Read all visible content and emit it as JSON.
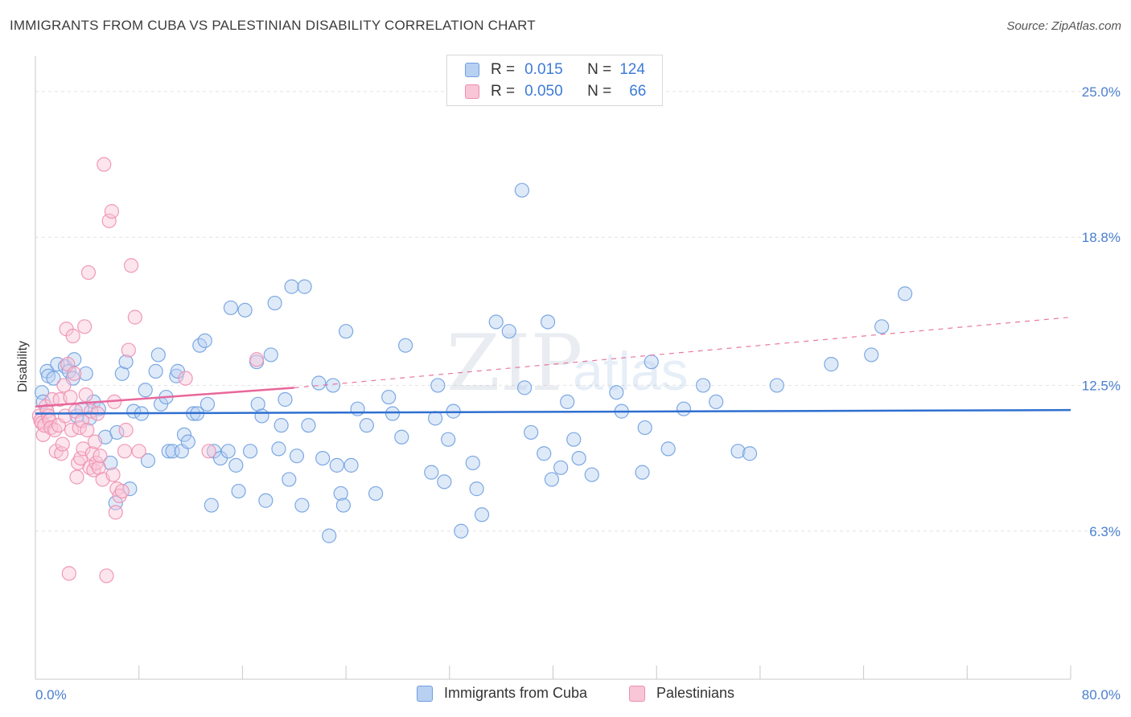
{
  "header": {
    "title": "IMMIGRANTS FROM CUBA VS PALESTINIAN DISABILITY CORRELATION CHART",
    "source": "Source: ZipAtlas.com"
  },
  "watermark": {
    "zip": "ZIP",
    "atlas": "atlas"
  },
  "legend": {
    "rows": [
      {
        "r_label": "R =",
        "r_value": "0.015",
        "n_label": "N =",
        "n_value": "124",
        "color": "#6fa0e0",
        "fill": "#b8d0f2"
      },
      {
        "r_label": "R =",
        "r_value": "0.050",
        "n_label": "N =",
        "n_value": "66",
        "color": "#ee8fb0",
        "fill": "#f8c6d6"
      }
    ]
  },
  "bottom_legend": [
    {
      "label": "Immigrants from Cuba",
      "color": "#6fa0e0",
      "fill": "#b8d0f2"
    },
    {
      "label": "Palestinians",
      "color": "#ee8fb0",
      "fill": "#f8c6d6"
    }
  ],
  "chart_data": {
    "type": "scatter",
    "title": "IMMIGRANTS FROM CUBA VS PALESTINIAN DISABILITY CORRELATION CHART",
    "xlabel": "",
    "ylabel": "Disability",
    "xlim": [
      0,
      80
    ],
    "ylim": [
      0,
      26.5
    ],
    "x_tick_labels": [
      {
        "value": 0,
        "label": "0.0%"
      },
      {
        "value": 80,
        "label": "80.0%"
      }
    ],
    "x_minor_ticks": [
      8,
      16,
      24,
      32,
      40,
      48,
      56,
      64,
      72,
      80
    ],
    "y_ticks": [
      {
        "value": 6.3,
        "label": "6.3%"
      },
      {
        "value": 12.5,
        "label": "12.5%"
      },
      {
        "value": 18.8,
        "label": "18.8%"
      },
      {
        "value": 25.0,
        "label": "25.0%"
      }
    ],
    "grid": "dashed-horizontal",
    "series": [
      {
        "name": "Immigrants from Cuba",
        "color": "#6fa0e0",
        "fill": "#b8d0f2",
        "trend": {
          "x0": 0,
          "y0": 11.3,
          "x1": 80,
          "y1": 11.45,
          "style": "solid"
        },
        "points": [
          [
            0.5,
            12.2
          ],
          [
            0.6,
            11.8
          ],
          [
            0.9,
            13.1
          ],
          [
            1.0,
            12.9
          ],
          [
            1.4,
            12.8
          ],
          [
            1.7,
            13.4
          ],
          [
            2.3,
            13.3
          ],
          [
            2.6,
            13.1
          ],
          [
            2.9,
            12.8
          ],
          [
            3.0,
            13.6
          ],
          [
            3.2,
            11.2
          ],
          [
            3.6,
            11.5
          ],
          [
            3.9,
            13.0
          ],
          [
            4.2,
            11.1
          ],
          [
            4.5,
            11.8
          ],
          [
            4.9,
            11.5
          ],
          [
            5.4,
            10.3
          ],
          [
            5.8,
            9.2
          ],
          [
            6.2,
            7.5
          ],
          [
            6.3,
            10.5
          ],
          [
            6.7,
            13.0
          ],
          [
            7.0,
            13.5
          ],
          [
            7.3,
            8.1
          ],
          [
            7.6,
            11.4
          ],
          [
            8.2,
            11.3
          ],
          [
            8.5,
            12.3
          ],
          [
            8.7,
            9.3
          ],
          [
            9.3,
            13.1
          ],
          [
            9.5,
            13.8
          ],
          [
            9.7,
            11.7
          ],
          [
            10.1,
            12.0
          ],
          [
            10.3,
            9.7
          ],
          [
            10.6,
            9.7
          ],
          [
            10.9,
            12.9
          ],
          [
            11.0,
            13.1
          ],
          [
            11.3,
            9.7
          ],
          [
            11.5,
            10.4
          ],
          [
            11.8,
            10.1
          ],
          [
            12.2,
            11.3
          ],
          [
            12.5,
            11.3
          ],
          [
            12.7,
            14.2
          ],
          [
            13.1,
            14.4
          ],
          [
            13.3,
            11.7
          ],
          [
            13.6,
            7.4
          ],
          [
            13.8,
            9.7
          ],
          [
            14.3,
            9.4
          ],
          [
            14.9,
            9.7
          ],
          [
            15.1,
            15.8
          ],
          [
            15.5,
            9.1
          ],
          [
            15.7,
            8.0
          ],
          [
            16.2,
            15.7
          ],
          [
            16.6,
            9.7
          ],
          [
            17.1,
            13.5
          ],
          [
            17.2,
            11.7
          ],
          [
            17.5,
            11.2
          ],
          [
            17.8,
            7.6
          ],
          [
            18.2,
            13.8
          ],
          [
            18.5,
            16.0
          ],
          [
            18.8,
            9.8
          ],
          [
            19.0,
            10.8
          ],
          [
            19.3,
            11.9
          ],
          [
            19.6,
            8.5
          ],
          [
            19.8,
            16.7
          ],
          [
            20.2,
            9.5
          ],
          [
            20.6,
            7.4
          ],
          [
            20.8,
            16.7
          ],
          [
            21.1,
            10.8
          ],
          [
            21.9,
            12.6
          ],
          [
            22.2,
            9.4
          ],
          [
            22.7,
            6.1
          ],
          [
            23.0,
            12.5
          ],
          [
            23.3,
            9.1
          ],
          [
            23.6,
            7.9
          ],
          [
            23.8,
            7.4
          ],
          [
            24.0,
            14.8
          ],
          [
            24.4,
            9.1
          ],
          [
            24.9,
            11.5
          ],
          [
            25.6,
            10.8
          ],
          [
            26.3,
            7.9
          ],
          [
            27.3,
            12.0
          ],
          [
            27.6,
            11.3
          ],
          [
            28.3,
            10.3
          ],
          [
            28.6,
            14.2
          ],
          [
            30.6,
            8.8
          ],
          [
            30.9,
            11.1
          ],
          [
            31.1,
            12.5
          ],
          [
            31.6,
            8.4
          ],
          [
            31.9,
            10.2
          ],
          [
            32.3,
            11.4
          ],
          [
            32.9,
            6.3
          ],
          [
            33.8,
            9.2
          ],
          [
            34.1,
            8.1
          ],
          [
            34.5,
            7.0
          ],
          [
            35.6,
            15.2
          ],
          [
            36.6,
            14.8
          ],
          [
            37.6,
            20.8
          ],
          [
            37.8,
            12.4
          ],
          [
            38.3,
            10.5
          ],
          [
            39.3,
            9.6
          ],
          [
            39.6,
            15.2
          ],
          [
            39.9,
            8.5
          ],
          [
            40.6,
            9.0
          ],
          [
            41.1,
            11.8
          ],
          [
            41.6,
            10.2
          ],
          [
            42.0,
            9.4
          ],
          [
            43.0,
            8.7
          ],
          [
            44.9,
            12.2
          ],
          [
            45.3,
            11.4
          ],
          [
            46.9,
            8.8
          ],
          [
            47.1,
            10.7
          ],
          [
            47.6,
            13.5
          ],
          [
            48.9,
            9.8
          ],
          [
            50.1,
            11.5
          ],
          [
            51.6,
            12.5
          ],
          [
            52.6,
            11.8
          ],
          [
            54.3,
            9.7
          ],
          [
            55.2,
            9.6
          ],
          [
            57.3,
            12.5
          ],
          [
            61.5,
            13.4
          ],
          [
            64.6,
            13.8
          ],
          [
            65.4,
            15.0
          ],
          [
            67.2,
            16.4
          ]
        ]
      },
      {
        "name": "Palestinians",
        "color": "#ee8fb0",
        "fill": "#f8c6d6",
        "trend": {
          "x0": 0,
          "y0": 11.6,
          "x1": 20,
          "y1": 12.4,
          "style": "solid"
        },
        "trend_extension": {
          "x0": 20,
          "y0": 12.4,
          "x1": 80,
          "y1": 15.4,
          "style": "dashed"
        },
        "points": [
          [
            0.3,
            11.2
          ],
          [
            0.4,
            11.0
          ],
          [
            0.5,
            10.9
          ],
          [
            0.6,
            10.4
          ],
          [
            0.7,
            10.8
          ],
          [
            0.8,
            11.6
          ],
          [
            0.9,
            11.4
          ],
          [
            1.0,
            11.2
          ],
          [
            1.1,
            11.0
          ],
          [
            1.2,
            10.7
          ],
          [
            1.3,
            11.9
          ],
          [
            1.5,
            10.6
          ],
          [
            1.6,
            9.7
          ],
          [
            1.8,
            10.8
          ],
          [
            1.9,
            11.9
          ],
          [
            2.0,
            9.6
          ],
          [
            2.1,
            10.0
          ],
          [
            2.2,
            12.5
          ],
          [
            2.3,
            11.2
          ],
          [
            2.4,
            14.9
          ],
          [
            2.5,
            13.4
          ],
          [
            2.6,
            4.5
          ],
          [
            2.7,
            12.0
          ],
          [
            2.8,
            10.6
          ],
          [
            2.9,
            14.6
          ],
          [
            3.0,
            13.0
          ],
          [
            3.1,
            11.4
          ],
          [
            3.2,
            8.6
          ],
          [
            3.3,
            9.2
          ],
          [
            3.4,
            10.7
          ],
          [
            3.5,
            9.4
          ],
          [
            3.6,
            11.0
          ],
          [
            3.7,
            9.8
          ],
          [
            3.8,
            15.0
          ],
          [
            3.9,
            12.1
          ],
          [
            4.0,
            10.6
          ],
          [
            4.1,
            17.3
          ],
          [
            4.2,
            9.0
          ],
          [
            4.3,
            11.4
          ],
          [
            4.4,
            9.6
          ],
          [
            4.5,
            8.9
          ],
          [
            4.6,
            10.1
          ],
          [
            4.7,
            9.2
          ],
          [
            4.8,
            11.3
          ],
          [
            4.9,
            9.0
          ],
          [
            5.0,
            9.5
          ],
          [
            5.2,
            8.5
          ],
          [
            5.3,
            21.9
          ],
          [
            5.5,
            4.4
          ],
          [
            5.7,
            19.5
          ],
          [
            5.9,
            19.9
          ],
          [
            6.0,
            8.7
          ],
          [
            6.1,
            11.8
          ],
          [
            6.2,
            7.1
          ],
          [
            6.3,
            8.1
          ],
          [
            6.5,
            7.8
          ],
          [
            6.7,
            8.0
          ],
          [
            6.9,
            9.7
          ],
          [
            7.0,
            10.6
          ],
          [
            7.2,
            14.0
          ],
          [
            7.4,
            17.6
          ],
          [
            7.7,
            15.4
          ],
          [
            8.0,
            9.7
          ],
          [
            11.6,
            12.8
          ],
          [
            13.4,
            9.7
          ],
          [
            17.1,
            13.6
          ]
        ]
      }
    ]
  }
}
